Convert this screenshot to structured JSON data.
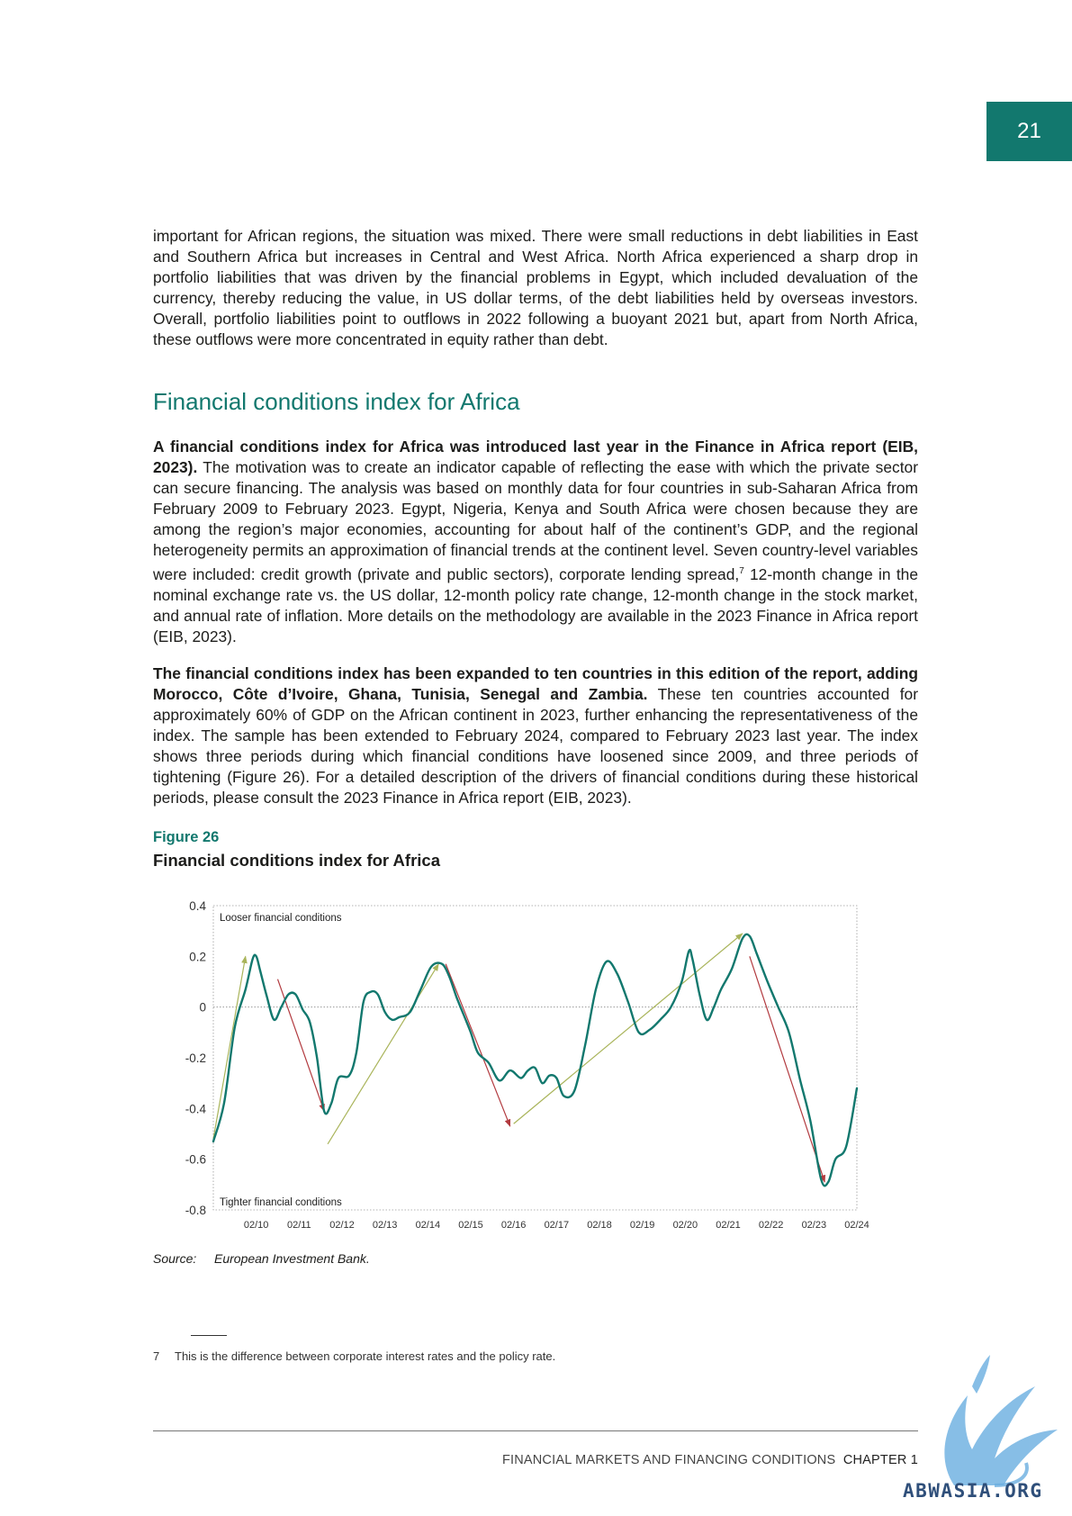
{
  "page_number": "21",
  "paragraph_1": "important for African regions, the situation was mixed. There were small reductions in debt liabilities in East and Southern Africa but increases in Central and West Africa. North Africa experienced a sharp drop in portfolio liabilities that was driven by the financial problems in Egypt, which included devaluation of the currency, thereby reducing the value, in US dollar terms, of the debt liabilities held by overseas investors. Overall, portfolio liabilities point to outflows in 2022 following a buoyant 2021 but, apart from North Africa, these outflows were more concentrated in equity rather than debt.",
  "section_heading": "Financial conditions index for Africa",
  "paragraph_2": {
    "lead": "A financial conditions index for Africa was introduced last year in the Finance in Africa report (EIB, 2023).",
    "text_a": " The motivation was to create an indicator capable of reflecting the ease with which the private sector can secure financing. The analysis was based on monthly data for four countries in sub-Saharan Africa from February 2009 to February 2023. Egypt, Nigeria, Kenya and South Africa were chosen because they are among the region’s major economies, accounting for about half of the continent’s GDP, and the regional heterogeneity permits an approximation of financial trends at the continent level. Seven country-level variables were included: credit growth (private and public sectors), corporate lending spread,",
    "footnote_ref": "7",
    "text_b": " 12-month change in the nominal exchange rate vs. the US dollar, 12-month policy rate change, 12-month change in the stock market, and annual rate of inflation. More details on the methodology are available in the 2023 Finance in Africa report (EIB, 2023)."
  },
  "paragraph_3": {
    "lead": "The financial conditions index has been expanded to ten countries in this edition of the report, adding Morocco, Côte d’Ivoire, Ghana, Tunisia, Senegal and Zambia.",
    "text": " These ten countries accounted for approximately 60% of GDP on the African continent in 2023, further enhancing the representativeness of the index. The sample has been extended to February 2024, compared to February 2023 last year. The index shows three periods during which financial conditions have loosened since 2009, and three periods of tightening (Figure 26). For a detailed description of the drivers of financial conditions during these historical periods, please consult the 2023 Finance in Africa report (EIB, 2023)."
  },
  "figure_label": "Figure 26",
  "figure_title": "Financial conditions index for Africa",
  "chart_data": {
    "type": "line",
    "title": "Financial conditions index for Africa",
    "xlabel": "",
    "ylabel": "",
    "x_ticks": [
      "02/10",
      "02/11",
      "02/12",
      "02/13",
      "02/14",
      "02/15",
      "02/16",
      "02/17",
      "02/18",
      "02/19",
      "02/20",
      "02/21",
      "02/22",
      "02/23",
      "02/24"
    ],
    "y_ticks": [
      "0.4",
      "0.2",
      "0",
      "-0.2",
      "-0.4",
      "-0.6",
      "-0.8"
    ],
    "ylim": [
      -0.8,
      0.4
    ],
    "xlim": [
      "2009-02",
      "2024-02"
    ],
    "zero_line": "dotted",
    "annotations": [
      "Looser financial conditions",
      "Tighter financial conditions"
    ],
    "line_color": "#12786e",
    "loosening_arrow_color": "#a9b45a",
    "tightening_arrow_color": "#b23a3f",
    "series": [
      {
        "values": [
          [
            "2009-02",
            -0.53
          ],
          [
            "2009-05",
            -0.38
          ],
          [
            "2009-08",
            -0.08
          ],
          [
            "2009-11",
            0.07
          ],
          [
            "2010-01",
            0.19
          ],
          [
            "2010-02",
            0.2
          ],
          [
            "2010-03",
            0.15
          ],
          [
            "2010-05",
            0.04
          ],
          [
            "2010-07",
            -0.05
          ],
          [
            "2010-09",
            0.0
          ],
          [
            "2010-11",
            0.05
          ],
          [
            "2011-01",
            0.05
          ],
          [
            "2011-03",
            -0.01
          ],
          [
            "2011-05",
            -0.06
          ],
          [
            "2011-07",
            -0.2
          ],
          [
            "2011-09",
            -0.41
          ],
          [
            "2011-11",
            -0.38
          ],
          [
            "2012-01",
            -0.28
          ],
          [
            "2012-04",
            -0.27
          ],
          [
            "2012-06",
            -0.18
          ],
          [
            "2012-08",
            0.02
          ],
          [
            "2012-10",
            0.06
          ],
          [
            "2012-12",
            0.05
          ],
          [
            "2013-02",
            -0.02
          ],
          [
            "2013-04",
            -0.05
          ],
          [
            "2013-06",
            -0.04
          ],
          [
            "2013-09",
            -0.02
          ],
          [
            "2013-12",
            0.07
          ],
          [
            "2014-03",
            0.16
          ],
          [
            "2014-06",
            0.17
          ],
          [
            "2014-08",
            0.12
          ],
          [
            "2014-10",
            0.04
          ],
          [
            "2014-12",
            -0.03
          ],
          [
            "2015-02",
            -0.1
          ],
          [
            "2015-04",
            -0.18
          ],
          [
            "2015-07",
            -0.22
          ],
          [
            "2015-10",
            -0.29
          ],
          [
            "2016-01",
            -0.25
          ],
          [
            "2016-04",
            -0.28
          ],
          [
            "2016-06",
            -0.25
          ],
          [
            "2016-08",
            -0.24
          ],
          [
            "2016-10",
            -0.3
          ],
          [
            "2016-12",
            -0.27
          ],
          [
            "2017-02",
            -0.28
          ],
          [
            "2017-04",
            -0.35
          ],
          [
            "2017-07",
            -0.33
          ],
          [
            "2017-10",
            -0.15
          ],
          [
            "2018-01",
            0.07
          ],
          [
            "2018-04",
            0.18
          ],
          [
            "2018-07",
            0.13
          ],
          [
            "2018-10",
            0.02
          ],
          [
            "2019-01",
            -0.1
          ],
          [
            "2019-04",
            -0.09
          ],
          [
            "2019-07",
            -0.05
          ],
          [
            "2019-10",
            0.0
          ],
          [
            "2020-01",
            0.1
          ],
          [
            "2020-03",
            0.22
          ],
          [
            "2020-04",
            0.19
          ],
          [
            "2020-06",
            0.05
          ],
          [
            "2020-08",
            -0.05
          ],
          [
            "2020-10",
            0.0
          ],
          [
            "2020-12",
            0.07
          ],
          [
            "2021-03",
            0.15
          ],
          [
            "2021-06",
            0.27
          ],
          [
            "2021-08",
            0.28
          ],
          [
            "2021-10",
            0.21
          ],
          [
            "2022-01",
            0.1
          ],
          [
            "2022-04",
            0.0
          ],
          [
            "2022-07",
            -0.1
          ],
          [
            "2022-10",
            -0.28
          ],
          [
            "2023-01",
            -0.45
          ],
          [
            "2023-04",
            -0.68
          ],
          [
            "2023-06",
            -0.69
          ],
          [
            "2023-08",
            -0.6
          ],
          [
            "2023-11",
            -0.55
          ],
          [
            "2024-02",
            -0.32
          ]
        ]
      }
    ],
    "loosening_arrows": [
      {
        "from": [
          "2009-02",
          -0.52
        ],
        "to": [
          "2009-11",
          0.2
        ]
      },
      {
        "from": [
          "2011-10",
          -0.54
        ],
        "to": [
          "2014-05",
          0.17
        ]
      },
      {
        "from": [
          "2016-02",
          -0.46
        ],
        "to": [
          "2021-06",
          0.29
        ]
      }
    ],
    "tightening_arrows": [
      {
        "from": [
          "2010-08",
          0.11
        ],
        "to": [
          "2011-09",
          -0.41
        ]
      },
      {
        "from": [
          "2014-07",
          0.17
        ],
        "to": [
          "2016-01",
          -0.47
        ]
      },
      {
        "from": [
          "2021-08",
          0.2
        ],
        "to": [
          "2023-05",
          -0.69
        ]
      }
    ]
  },
  "source": {
    "label": "Source:",
    "text": "European Investment Bank."
  },
  "footnote": {
    "number": "7",
    "text": "This is the difference between corporate interest rates and the policy rate."
  },
  "footer": {
    "text": "FINANCIAL MARKETS AND FINANCING CONDITIONS",
    "chapter": "CHAPTER 1"
  },
  "watermark": {
    "text": "ABWASIA.ORG"
  }
}
